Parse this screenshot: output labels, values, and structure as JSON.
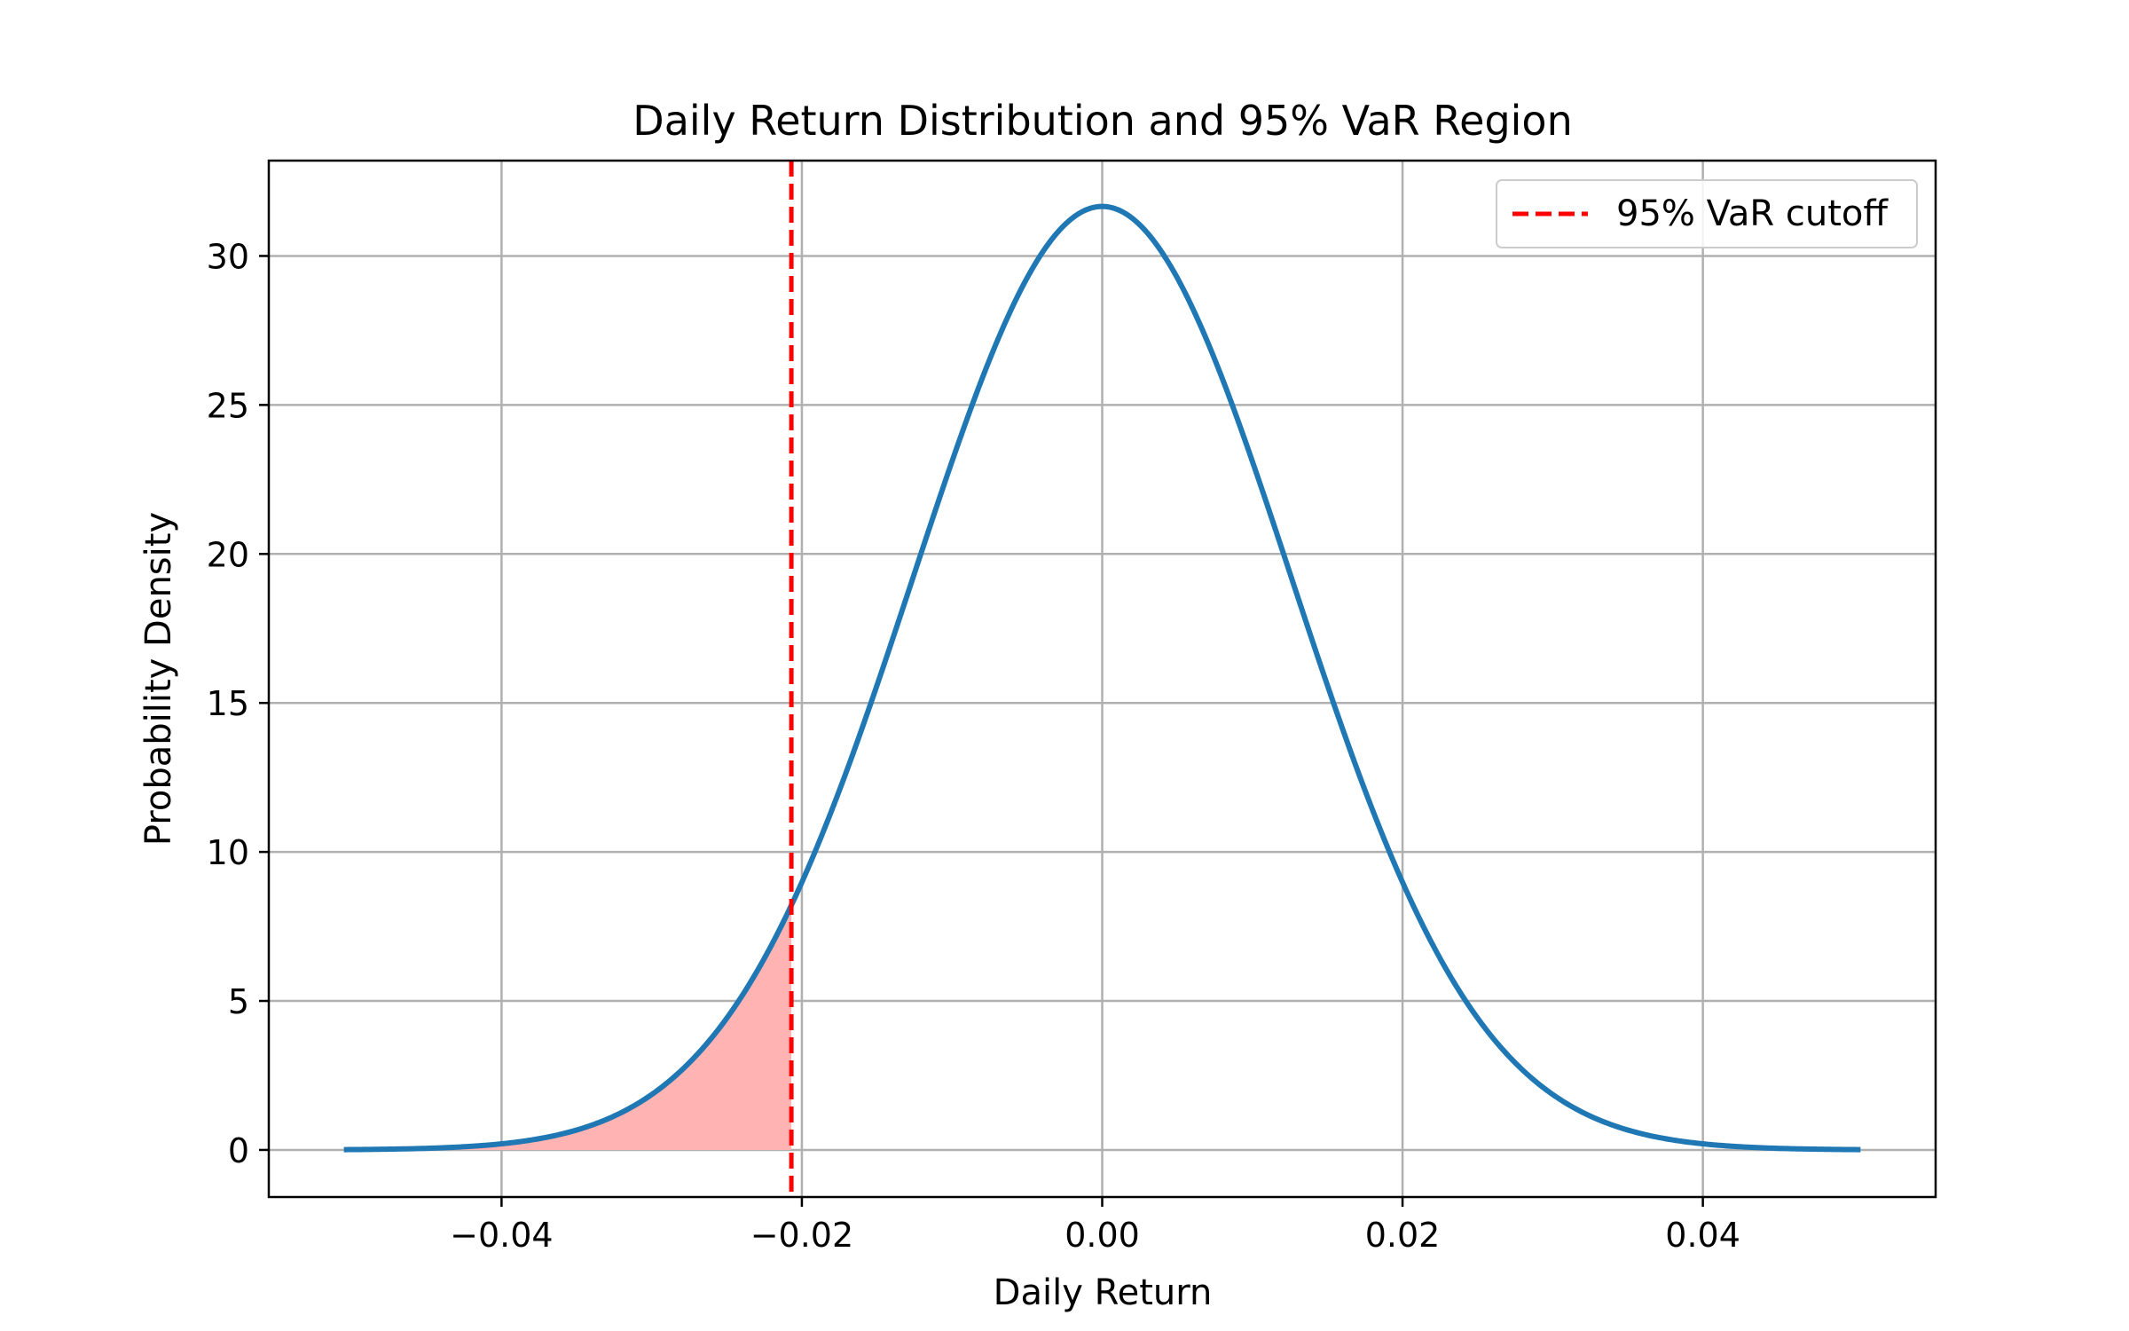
{
  "chart_data": {
    "type": "line",
    "title": "Daily Return Distribution and 95% VaR Region",
    "xlabel": "Daily Return",
    "ylabel": "Probability Density",
    "xlim": [
      -0.0555,
      0.0555
    ],
    "ylim": [
      -1.58,
      33.2
    ],
    "x_ticks": [
      {
        "value": -0.04,
        "label": "−0.04"
      },
      {
        "value": -0.02,
        "label": "−0.02"
      },
      {
        "value": 0.0,
        "label": "0.00"
      },
      {
        "value": 0.02,
        "label": "0.02"
      },
      {
        "value": 0.04,
        "label": "0.04"
      }
    ],
    "y_ticks": [
      {
        "value": 0,
        "label": "0"
      },
      {
        "value": 5,
        "label": "5"
      },
      {
        "value": 10,
        "label": "10"
      },
      {
        "value": 15,
        "label": "15"
      },
      {
        "value": 20,
        "label": "20"
      },
      {
        "value": 25,
        "label": "25"
      },
      {
        "value": 30,
        "label": "30"
      }
    ],
    "grid": true,
    "legend_position": "top-right",
    "series": [
      {
        "kind": "normal_pdf",
        "mean": 0.0,
        "std": 0.0126,
        "x_range": [
          -0.0505,
          0.0505
        ],
        "color": "#1f77b4",
        "peak_density": 31.7
      }
    ],
    "shaded_region": {
      "x_range": [
        -0.0505,
        -0.0207
      ],
      "color": "#ffb3b3",
      "fill_alpha": 1.0
    },
    "reference_lines": [
      {
        "orientation": "vertical",
        "x": -0.0207,
        "style": "dashed",
        "color": "#ff0000",
        "label": "95% VaR cutoff"
      }
    ]
  }
}
